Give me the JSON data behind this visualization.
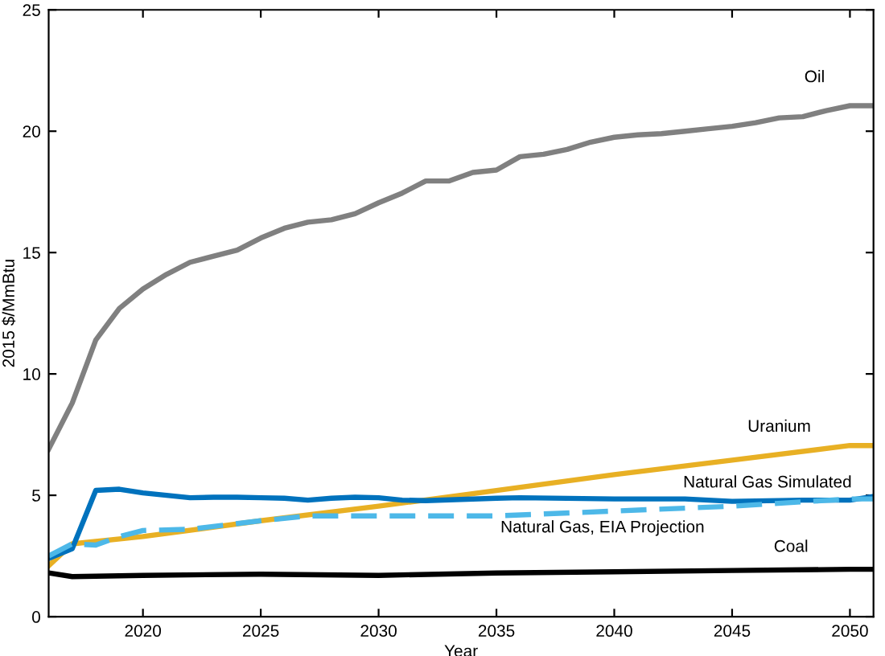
{
  "chart_data": {
    "type": "line",
    "xlabel": "Year",
    "ylabel": "2015 $/MmBtu",
    "xlim": [
      2016,
      2051
    ],
    "ylim": [
      0,
      25
    ],
    "xticks": [
      2020,
      2025,
      2030,
      2035,
      2040,
      2045,
      2050
    ],
    "yticks": [
      0,
      5,
      10,
      15,
      20,
      25
    ],
    "grid": false,
    "legend": false,
    "marker": "none",
    "series": [
      {
        "name": "Oil",
        "color": "#808080",
        "line_style": "solid",
        "x": [
          2016,
          2017,
          2018,
          2019,
          2020,
          2021,
          2022,
          2023,
          2024,
          2025,
          2026,
          2027,
          2028,
          2029,
          2030,
          2031,
          2032,
          2033,
          2034,
          2035,
          2036,
          2037,
          2038,
          2039,
          2040,
          2041,
          2042,
          2043,
          2044,
          2045,
          2046,
          2047,
          2048,
          2049,
          2050,
          2051
        ],
        "values": [
          6.9,
          8.8,
          11.4,
          12.7,
          13.5,
          14.1,
          14.6,
          14.85,
          15.1,
          15.6,
          16.0,
          16.25,
          16.35,
          16.6,
          17.05,
          17.45,
          17.95,
          17.95,
          18.3,
          18.4,
          18.95,
          19.05,
          19.25,
          19.55,
          19.75,
          19.85,
          19.9,
          20.0,
          20.1,
          20.2,
          20.35,
          20.55,
          20.6,
          20.85,
          21.05,
          21.05
        ]
      },
      {
        "name": "Uranium",
        "color": "#e8b024",
        "line_style": "solid",
        "x": [
          2016,
          2017,
          2020,
          2025,
          2030,
          2035,
          2040,
          2045,
          2050,
          2051
        ],
        "values": [
          2.1,
          3.0,
          3.3,
          3.95,
          4.55,
          5.2,
          5.85,
          6.45,
          7.05,
          7.05
        ]
      },
      {
        "name": "Natural Gas Simulated",
        "color": "#0072bd",
        "line_style": "solid",
        "x": [
          2016,
          2017,
          2018,
          2019,
          2020,
          2021,
          2022,
          2023,
          2024,
          2025,
          2026,
          2027,
          2028,
          2029,
          2030,
          2031,
          2032,
          2035,
          2036,
          2040,
          2043,
          2045,
          2048,
          2050,
          2051
        ],
        "values": [
          2.4,
          2.8,
          5.2,
          5.25,
          5.1,
          5.0,
          4.9,
          4.92,
          4.92,
          4.9,
          4.88,
          4.8,
          4.88,
          4.92,
          4.9,
          4.8,
          4.78,
          4.88,
          4.9,
          4.85,
          4.85,
          4.75,
          4.8,
          4.8,
          4.95
        ]
      },
      {
        "name": "Natural Gas, EIA Projection",
        "color": "#4db8e8",
        "line_style": "dashed",
        "x": [
          2016,
          2017,
          2018,
          2019,
          2020,
          2022,
          2025,
          2027,
          2030,
          2035,
          2040,
          2045,
          2050,
          2051
        ],
        "values": [
          2.5,
          3.0,
          2.95,
          3.3,
          3.55,
          3.6,
          3.95,
          4.15,
          4.15,
          4.15,
          4.35,
          4.55,
          4.85,
          4.85
        ]
      },
      {
        "name": "Coal",
        "color": "#000000",
        "line_style": "solid",
        "x": [
          2016,
          2017,
          2020,
          2025,
          2030,
          2035,
          2040,
          2045,
          2050,
          2051
        ],
        "values": [
          1.8,
          1.65,
          1.7,
          1.75,
          1.7,
          1.8,
          1.85,
          1.9,
          1.95,
          1.95
        ]
      }
    ]
  }
}
